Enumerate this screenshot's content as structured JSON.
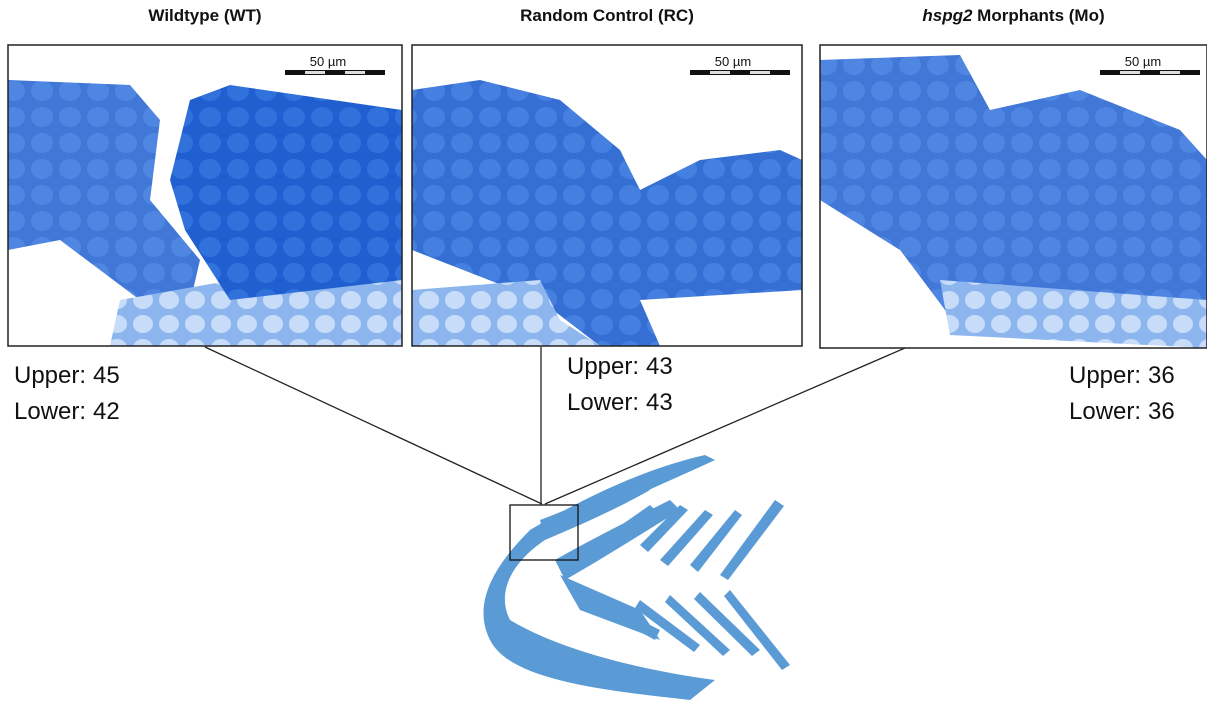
{
  "panels": [
    {
      "title": "Wildtype (WT)",
      "scale_label": "50 µm",
      "upper": {
        "label": "Upper:",
        "value": 45
      },
      "lower": {
        "label": "Lower:",
        "value": 42
      }
    },
    {
      "title": "Random Control (RC)",
      "scale_label": "50 µm",
      "upper": {
        "label": "Upper:",
        "value": 43
      },
      "lower": {
        "label": "Lower:",
        "value": 43
      }
    },
    {
      "title_italic": "hspg2",
      "title": "Morphants (Mo)",
      "scale_label": "50 µm",
      "upper": {
        "label": "Upper:",
        "value": 36
      },
      "lower": {
        "label": "Lower:",
        "value": 36
      }
    }
  ]
}
